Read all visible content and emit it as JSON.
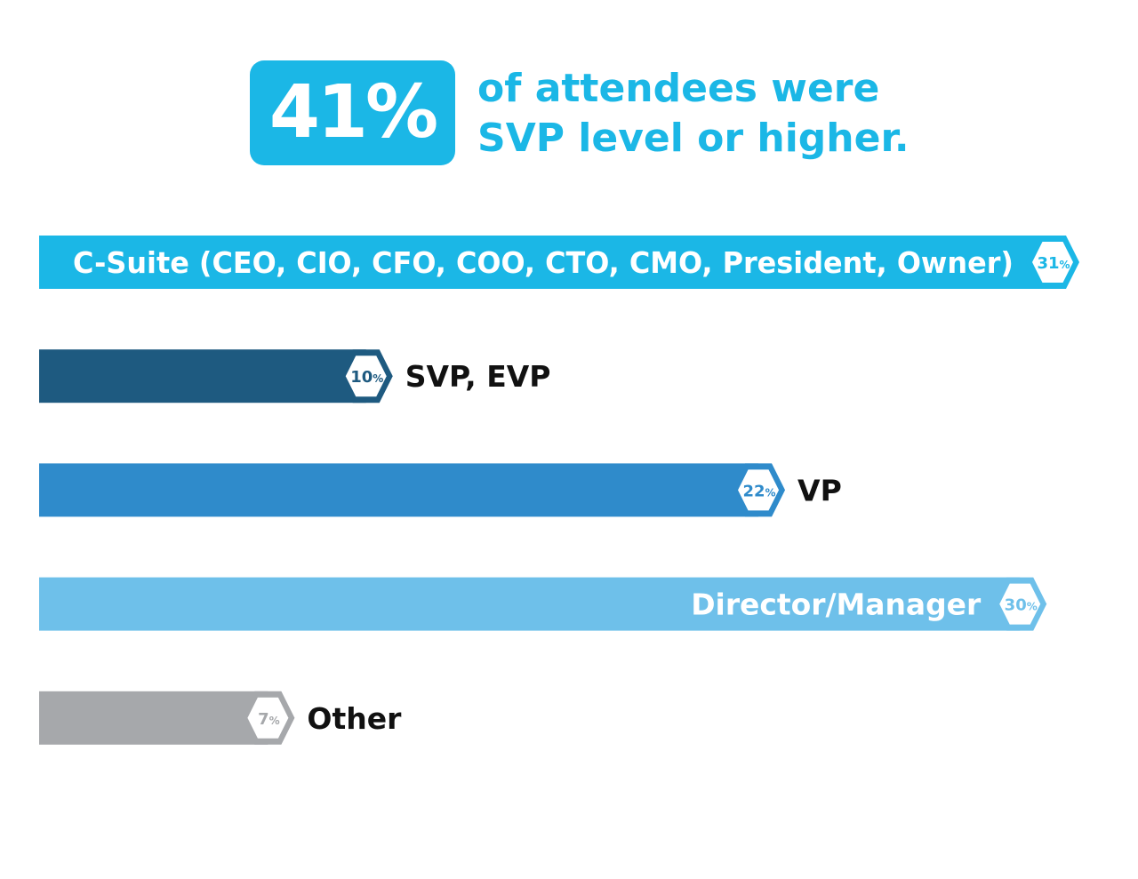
{
  "colors": {
    "accent": "#1bb7e6",
    "svp_evp": "#1e5a80",
    "vp": "#2f8bcb",
    "director_manager": "#6ec0ea",
    "other": "#a6a8ab",
    "label_dark": "#111111",
    "label_light": "#ffffff"
  },
  "headline": {
    "stat": "41%",
    "line1": "of attendees were",
    "line2": "SVP level or higher."
  },
  "chart_data": {
    "type": "bar",
    "orientation": "horizontal",
    "unit": "%",
    "xlim": [
      0,
      31
    ],
    "categories": [
      "C-Suite (CEO, CIO, CFO, COO, CTO, CMO, President, Owner)",
      "SVP, EVP",
      "VP",
      "Director/Manager",
      "Other"
    ],
    "values": [
      31,
      10,
      22,
      30,
      7
    ],
    "value_labels": [
      "31",
      "10",
      "22",
      "30",
      "7"
    ],
    "colors": [
      "#1bb7e6",
      "#1e5a80",
      "#2f8bcb",
      "#6ec0ea",
      "#a6a8ab"
    ],
    "label_placement": [
      "inside",
      "outside",
      "outside",
      "inside",
      "outside"
    ]
  }
}
